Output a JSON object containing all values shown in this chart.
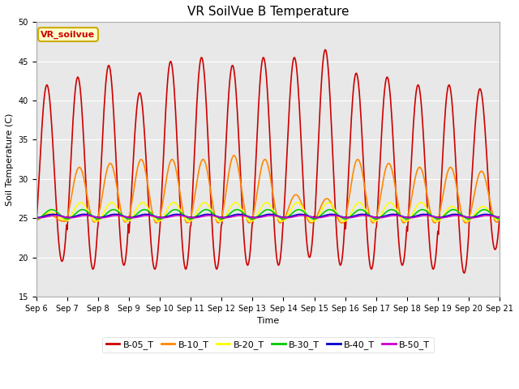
{
  "title": "VR SoilVue B Temperature",
  "ylabel": "Soil Temperature (C)",
  "xlabel": "Time",
  "ylim": [
    15,
    50
  ],
  "xlim": [
    0,
    15
  ],
  "yticks": [
    15,
    20,
    25,
    30,
    35,
    40,
    45,
    50
  ],
  "xtick_labels": [
    "Sep 6",
    "Sep 7",
    "Sep 8",
    "Sep 9",
    "Sep 10",
    "Sep 11",
    "Sep 12",
    "Sep 13",
    "Sep 14",
    "Sep 15",
    "Sep 16",
    "Sep 17",
    "Sep 18",
    "Sep 19",
    "Sep 20",
    "Sep 21"
  ],
  "background_color": "#e8e8e8",
  "plot_bg": "#e8e8e8",
  "series": {
    "B-05_T": {
      "color": "#cc0000",
      "linewidth": 1.2
    },
    "B-10_T": {
      "color": "#ff8800",
      "linewidth": 1.2
    },
    "B-20_T": {
      "color": "#ffff00",
      "linewidth": 1.2
    },
    "B-30_T": {
      "color": "#00cc00",
      "linewidth": 1.2
    },
    "B-40_T": {
      "color": "#0000cc",
      "linewidth": 1.2
    },
    "B-50_T": {
      "color": "#cc00cc",
      "linewidth": 1.2
    }
  },
  "legend_label": "VR_soilvue",
  "legend_bg": "#ffffcc",
  "legend_border": "#ccaa00",
  "title_fontsize": 11,
  "axis_fontsize": 8,
  "tick_fontsize": 7,
  "b05_peaks": [
    42,
    43,
    44.5,
    41,
    45,
    45.5,
    44.5,
    45.5,
    45.5,
    46.5,
    43.5,
    43,
    42,
    42,
    41.5
  ],
  "b05_troughs": [
    19.5,
    18.5,
    19.0,
    18.5,
    18.5,
    18.5,
    19.0,
    19.0,
    20.0,
    19.0,
    18.5,
    19.0,
    18.5,
    18.0,
    21.0
  ],
  "b10_peaks": [
    25.5,
    31.5,
    32.0,
    32.5,
    32.5,
    32.5,
    33.0,
    32.5,
    28.0,
    27.5,
    32.5,
    32.0,
    31.5,
    31.5,
    31.0
  ],
  "b10_troughs": [
    24.6,
    24.5,
    24.5,
    24.4,
    24.4,
    24.4,
    24.4,
    24.4,
    24.4,
    24.4,
    24.4,
    24.4,
    24.4,
    24.4,
    24.5
  ],
  "b20_peaks": [
    25.8,
    27.0,
    27.0,
    27.0,
    27.0,
    27.0,
    27.0,
    27.0,
    27.0,
    27.0,
    27.0,
    27.0,
    27.0,
    26.5,
    26.5
  ],
  "b20_troughs": [
    24.8,
    24.6,
    24.6,
    24.6,
    24.6,
    24.6,
    24.6,
    24.6,
    24.6,
    24.6,
    24.6,
    24.6,
    24.6,
    24.6,
    24.8
  ],
  "b30_base": 25.5,
  "b30_amp": 0.6,
  "b40_base": 25.3,
  "b40_amp": 0.2,
  "b50_base": 25.2,
  "b50_amp": 0.15,
  "n_days": 15,
  "points_per_day": 48
}
